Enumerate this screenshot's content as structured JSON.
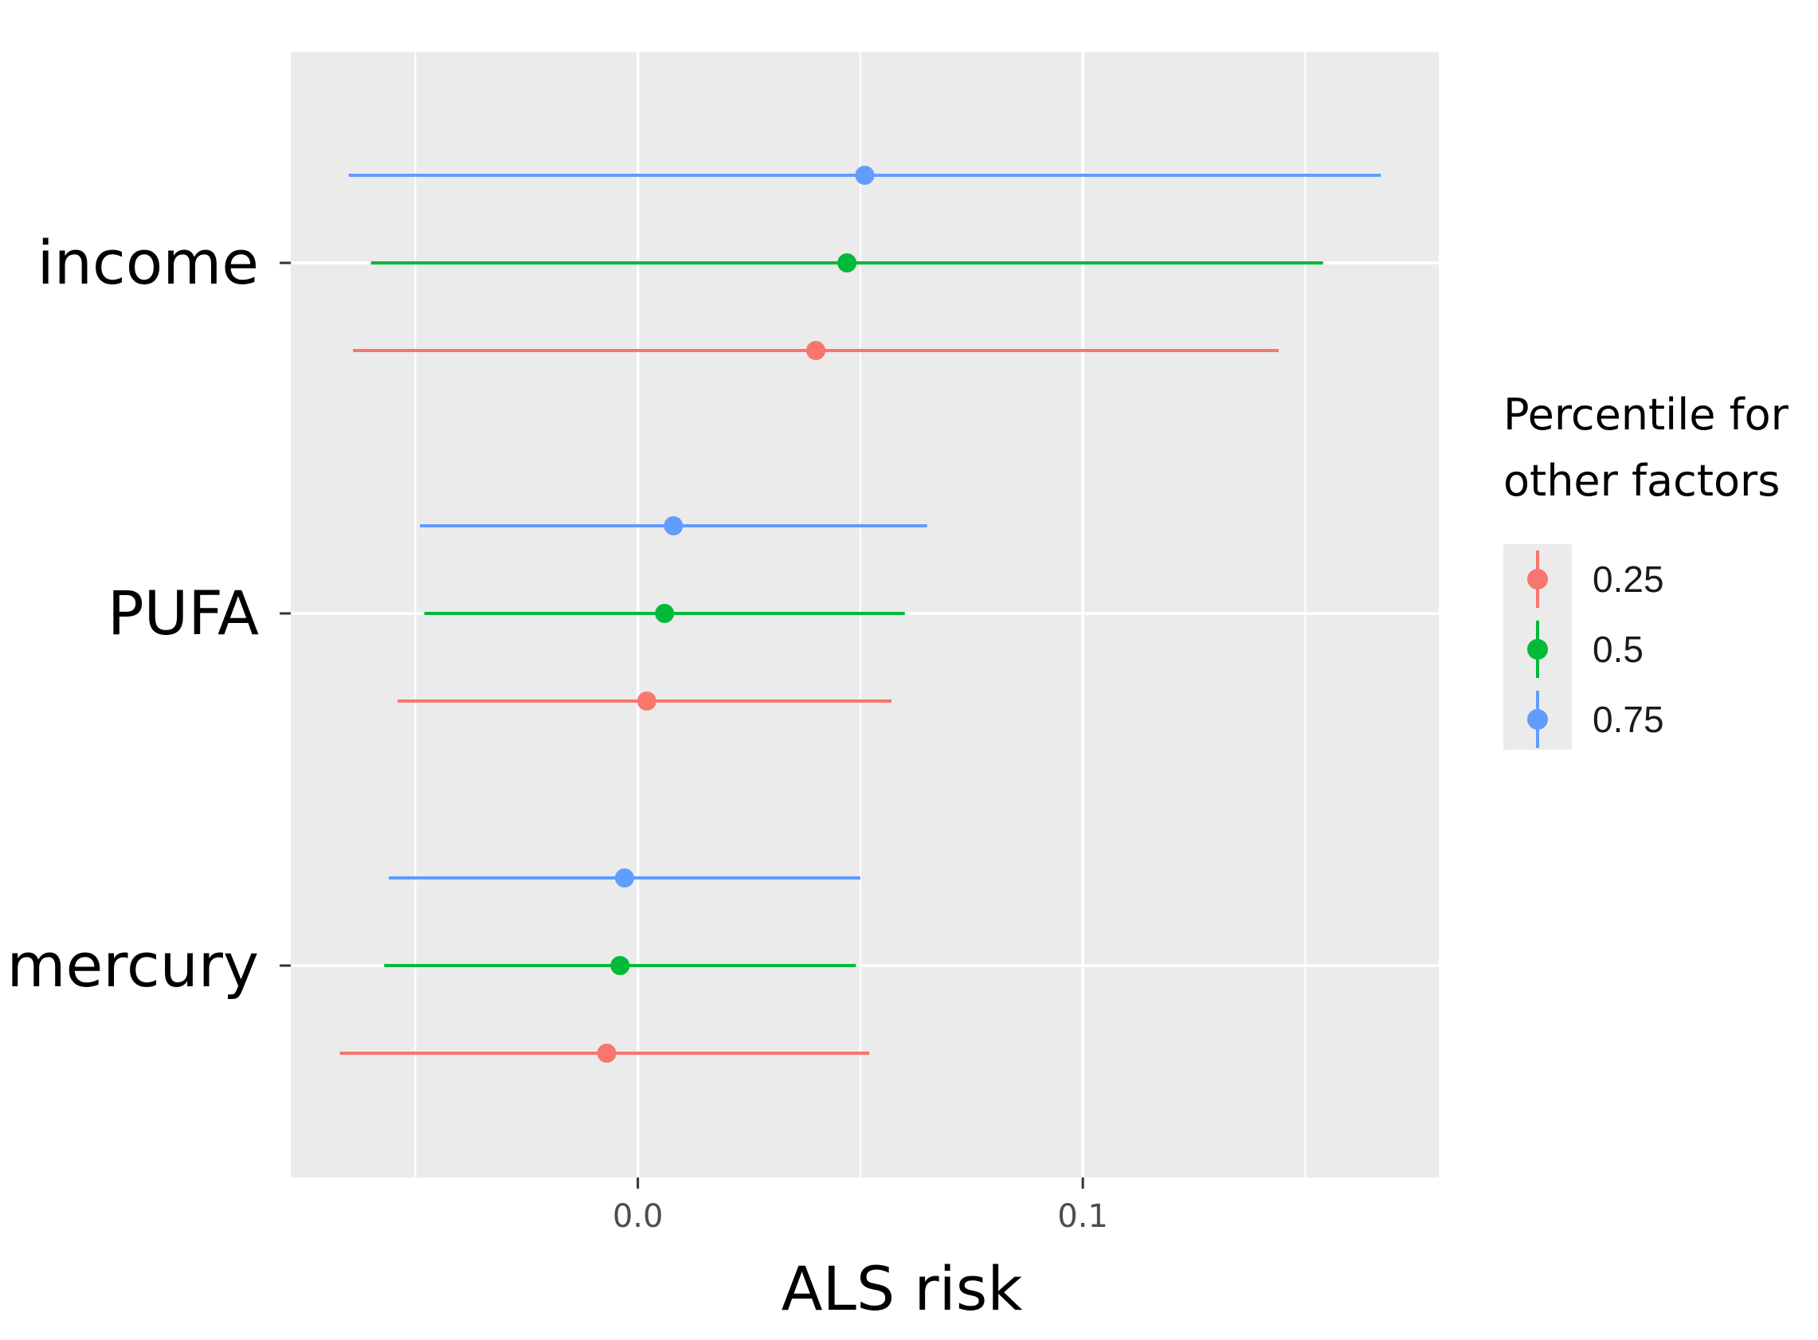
{
  "chart_data": {
    "type": "scatter",
    "subtype": "point-range",
    "xlabel": "ALS risk",
    "ylabel": "",
    "xlim": [
      -0.078,
      0.18
    ],
    "x_ticks": [
      {
        "value": 0.0,
        "label": "0.0"
      },
      {
        "value": 0.1,
        "label": "0.1"
      }
    ],
    "x_minor_gridlines": [
      -0.05,
      0.05,
      0.15
    ],
    "categories": [
      "income",
      "PUFA",
      "mercury"
    ],
    "grid": true,
    "legend": {
      "title_lines": [
        "Percentile for",
        "other factors"
      ],
      "position": "right"
    },
    "series": [
      {
        "name": "0.25",
        "color": "#F8766D",
        "points": [
          {
            "category": "income",
            "estimate": 0.04,
            "low": -0.064,
            "high": 0.144
          },
          {
            "category": "PUFA",
            "estimate": 0.002,
            "low": -0.054,
            "high": 0.057
          },
          {
            "category": "mercury",
            "estimate": -0.007,
            "low": -0.067,
            "high": 0.052
          }
        ]
      },
      {
        "name": "0.5",
        "color": "#00BA38",
        "points": [
          {
            "category": "income",
            "estimate": 0.047,
            "low": -0.06,
            "high": 0.154
          },
          {
            "category": "PUFA",
            "estimate": 0.006,
            "low": -0.048,
            "high": 0.06
          },
          {
            "category": "mercury",
            "estimate": -0.004,
            "low": -0.057,
            "high": 0.049
          }
        ]
      },
      {
        "name": "0.75",
        "color": "#619CFF",
        "points": [
          {
            "category": "income",
            "estimate": 0.051,
            "low": -0.065,
            "high": 0.167
          },
          {
            "category": "PUFA",
            "estimate": 0.008,
            "low": -0.049,
            "high": 0.065
          },
          {
            "category": "mercury",
            "estimate": -0.003,
            "low": -0.056,
            "high": 0.05
          }
        ]
      }
    ]
  }
}
